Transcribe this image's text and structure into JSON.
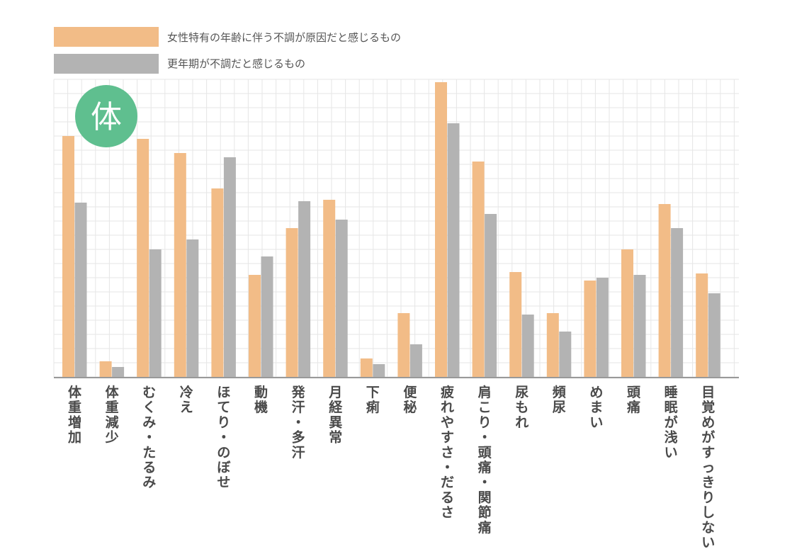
{
  "badge": {
    "label": "体",
    "color": "#5fbf8f"
  },
  "colors": {
    "series1": "#f2bc87",
    "series2": "#b3b3b3",
    "grid": "#e6e6e6",
    "axis": "#999999"
  },
  "chart_data": {
    "type": "bar",
    "categories": [
      "体重増加",
      "体重減少",
      "むくみ・たるみ",
      "冷え",
      "ほてり・のぼせ",
      "動機",
      "発汗・多汗",
      "月経異常",
      "下痢",
      "便秘",
      "疲れやすさ・だるさ",
      "肩こり・頭痛・関節痛",
      "尿もれ",
      "頻尿",
      "めまい",
      "頭痛",
      "睡眠が浅い",
      "目覚めがすっきりしない"
    ],
    "series": [
      {
        "name": "女性特有の年齢に伴う不調が原因だと感じるもの",
        "values": [
          85,
          5.5,
          84,
          79,
          66.5,
          36,
          52.5,
          62.5,
          6.5,
          22.5,
          104,
          76,
          37,
          22.5,
          34,
          45,
          61,
          36.5
        ]
      },
      {
        "name": "更年期が不調だと感じるもの",
        "values": [
          61.5,
          3.5,
          45,
          48.5,
          77.5,
          42.5,
          62,
          55.5,
          4.5,
          11.5,
          89.5,
          57.5,
          22,
          16,
          35,
          36,
          52.5,
          29.5
        ]
      }
    ],
    "ylim": [
      0,
      105
    ],
    "grid": true,
    "legend": "top-left"
  }
}
